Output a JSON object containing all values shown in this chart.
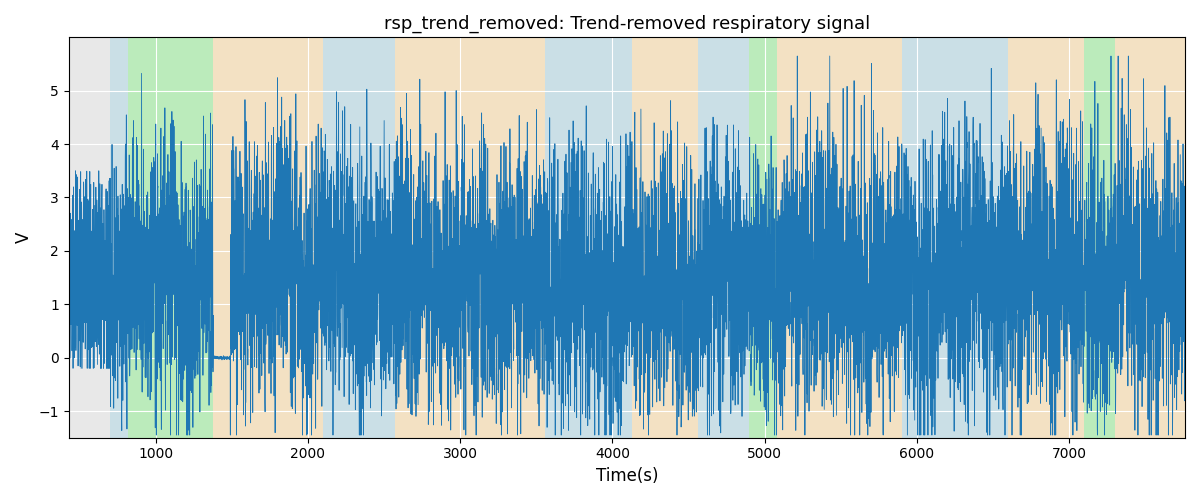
{
  "title": "rsp_trend_removed: Trend-removed respiratory signal",
  "xlabel": "Time(s)",
  "ylabel": "V",
  "ylim": [
    -1.5,
    6.0
  ],
  "xlim": [
    430,
    7760
  ],
  "signal_color": "#1f77b4",
  "signal_linewidth": 0.6,
  "background_bands": [
    {
      "xstart": 700,
      "xend": 820,
      "color": "#add8e6",
      "alpha": 0.5
    },
    {
      "xstart": 820,
      "xend": 1380,
      "color": "#90ee90",
      "alpha": 0.5
    },
    {
      "xstart": 1380,
      "xend": 2100,
      "color": "#ffdca0",
      "alpha": 0.5
    },
    {
      "xstart": 2100,
      "xend": 2570,
      "color": "#add8e6",
      "alpha": 0.5
    },
    {
      "xstart": 2570,
      "xend": 3560,
      "color": "#ffdca0",
      "alpha": 0.5
    },
    {
      "xstart": 3560,
      "xend": 4130,
      "color": "#add8e6",
      "alpha": 0.5
    },
    {
      "xstart": 4130,
      "xend": 4560,
      "color": "#ffdca0",
      "alpha": 0.5
    },
    {
      "xstart": 4560,
      "xend": 4900,
      "color": "#add8e6",
      "alpha": 0.5
    },
    {
      "xstart": 4900,
      "xend": 5080,
      "color": "#90ee90",
      "alpha": 0.5
    },
    {
      "xstart": 5080,
      "xend": 5500,
      "color": "#ffdca0",
      "alpha": 0.5
    },
    {
      "xstart": 5500,
      "xend": 5900,
      "color": "#ffdca0",
      "alpha": 0.5
    },
    {
      "xstart": 5900,
      "xend": 6600,
      "color": "#add8e6",
      "alpha": 0.5
    },
    {
      "xstart": 6600,
      "xend": 7100,
      "color": "#ffdca0",
      "alpha": 0.5
    },
    {
      "xstart": 7100,
      "xend": 7300,
      "color": "#90ee90",
      "alpha": 0.5
    },
    {
      "xstart": 7300,
      "xend": 7760,
      "color": "#ffdca0",
      "alpha": 0.5
    }
  ],
  "seed": 42,
  "title_fontsize": 13,
  "bg_color": "#e8e8e8",
  "grid_color": "white"
}
